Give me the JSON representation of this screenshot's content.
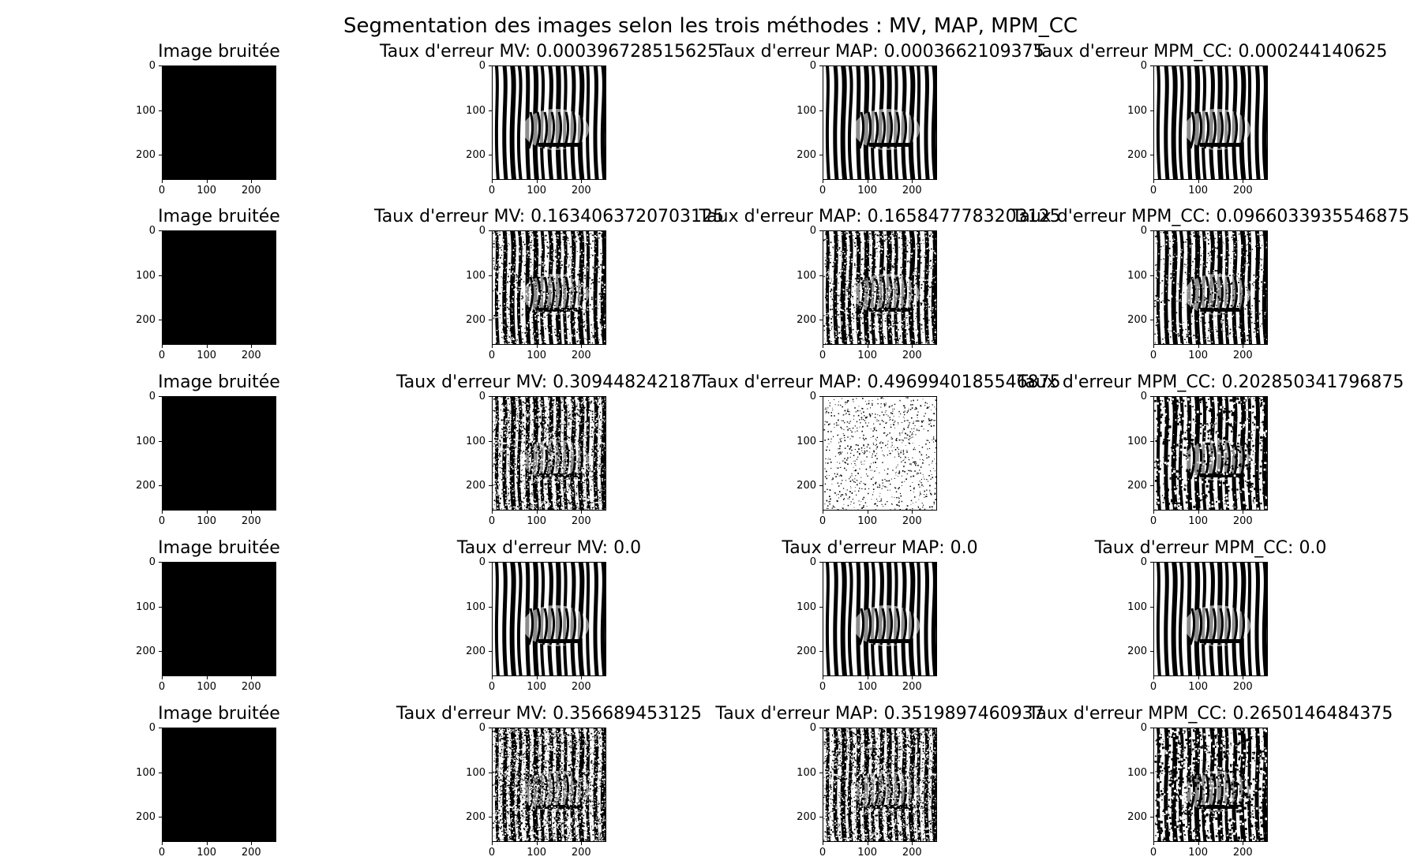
{
  "figure": {
    "suptitle": "Segmentation des images selon les trois méthodes : MV, MAP, MPM_CC",
    "image_size": 256,
    "tick_values": [
      "0",
      "100",
      "200"
    ],
    "rows": [
      {
        "panels": [
          {
            "title": "Image bruitée",
            "kind": "noisy",
            "noise": 0
          },
          {
            "title": "Taux d'erreur MV: 0.000396728515625",
            "kind": "zebra",
            "noise": 0.0004
          },
          {
            "title": "Taux d'erreur MAP: 0.0003662109375",
            "kind": "zebra",
            "noise": 0.0004
          },
          {
            "title": "Taux d'erreur MPM_CC: 0.000244140625",
            "kind": "zebra",
            "noise": 0.0002
          }
        ]
      },
      {
        "panels": [
          {
            "title": "Image bruitée",
            "kind": "noisy",
            "noise": 0
          },
          {
            "title": "Taux d'erreur MV: 0.1634063720703125",
            "kind": "zebra",
            "noise": 0.163
          },
          {
            "title": "Taux d'erreur MAP: 0.1658477783203125",
            "kind": "zebra",
            "noise": 0.166
          },
          {
            "title": "Taux d'erreur MPM_CC: 0.0966033935546875",
            "kind": "zebra",
            "noise": 0.097
          }
        ]
      },
      {
        "panels": [
          {
            "title": "Image bruitée",
            "kind": "noisy",
            "noise": 0
          },
          {
            "title": "Taux d'erreur MV: 0.309448242187",
            "kind": "zebra",
            "noise": 0.31
          },
          {
            "title": "Taux d'erreur MAP: 0.4969940185546875",
            "kind": "white",
            "noise": 0.1
          },
          {
            "title": "Taux d'erreur MPM_CC: 0.202850341796875",
            "kind": "blotchy",
            "noise": 0.2
          }
        ]
      },
      {
        "panels": [
          {
            "title": "Image bruitée",
            "kind": "noisy",
            "noise": 0
          },
          {
            "title": "Taux d'erreur MV: 0.0",
            "kind": "zebra",
            "noise": 0
          },
          {
            "title": "Taux d'erreur MAP: 0.0",
            "kind": "zebra",
            "noise": 0
          },
          {
            "title": "Taux d'erreur MPM_CC: 0.0",
            "kind": "zebra",
            "noise": 0
          }
        ]
      },
      {
        "panels": [
          {
            "title": "Image bruitée",
            "kind": "noisy",
            "noise": 0
          },
          {
            "title": "Taux d'erreur MV: 0.356689453125",
            "kind": "zebra",
            "noise": 0.36
          },
          {
            "title": "Taux d'erreur MAP: 0.3519897460937",
            "kind": "zebra",
            "noise": 0.35
          },
          {
            "title": "Taux d'erreur MPM_CC: 0.2650146484375",
            "kind": "blotchy",
            "noise": 0.26
          }
        ]
      }
    ]
  }
}
